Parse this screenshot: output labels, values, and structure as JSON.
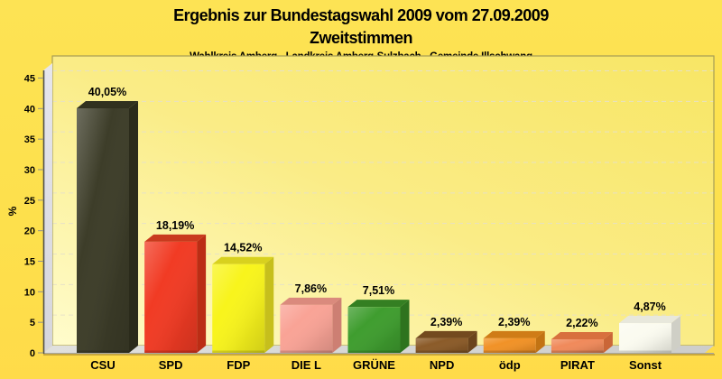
{
  "header": {
    "title": "Ergebnis zur Bundestagswahl 2009 vom 27.09.2009",
    "subtitle": "Zweitstimmen",
    "region_line": "Wahlkreis Amberg - Landkreis Amberg-Sulzbach - Gemeinde Illschwang"
  },
  "chart_data": {
    "type": "bar",
    "style": "3d",
    "title": "Ergebnis zur Bundestagswahl 2009 vom 27.09.2009",
    "subtitle": "Zweitstimmen",
    "annotation": "Wahlkreis Amberg - Landkreis Amberg-Sulzbach - Gemeinde Illschwang",
    "xlabel": "",
    "ylabel": "%",
    "ylim": [
      0,
      45
    ],
    "ytick_step": 5,
    "yticks": [
      0,
      5,
      10,
      15,
      20,
      25,
      30,
      35,
      40,
      45
    ],
    "grid": "dashed-horizontal",
    "legend": "none",
    "categories": [
      "CSU",
      "SPD",
      "FDP",
      "DIE L",
      "GRÜNE",
      "NPD",
      "ödp",
      "PIRAT",
      "Sonst"
    ],
    "values": [
      40.05,
      18.19,
      14.52,
      7.86,
      7.51,
      2.39,
      2.39,
      2.22,
      4.87
    ],
    "value_labels": [
      "40,05%",
      "18,19%",
      "14,52%",
      "7,86%",
      "7,51%",
      "2,39%",
      "2,39%",
      "2,22%",
      "4,87%"
    ],
    "bars": [
      {
        "id": "csu",
        "front": "#3D3D29",
        "top": "#31311F",
        "side": "#2B2B1B"
      },
      {
        "id": "spd",
        "front": "#F13B24",
        "top": "#C93A1E",
        "side": "#BB2D15"
      },
      {
        "id": "fdp",
        "front": "#F8F41C",
        "top": "#D8D11E",
        "side": "#C6BF1C"
      },
      {
        "id": "die-l",
        "front": "#F9A396",
        "top": "#DA8A7D",
        "side": "#CD7F73"
      },
      {
        "id": "gruene",
        "front": "#3F9D2F",
        "top": "#347F22",
        "side": "#2E731E"
      },
      {
        "id": "npd",
        "front": "#8B5B29",
        "top": "#734A1F",
        "side": "#6B441D"
      },
      {
        "id": "oedp",
        "front": "#F19227",
        "top": "#CF7C17",
        "side": "#C27313"
      },
      {
        "id": "pirat",
        "front": "#F08A5B",
        "top": "#D8703E",
        "side": "#CA6637"
      },
      {
        "id": "sonst",
        "front": "#FBFBF0",
        "top": "#E8E8DC",
        "side": "#CFCFC6"
      }
    ]
  },
  "colors": {
    "background": "#FDE14D",
    "plot_border": "#A69D55",
    "gridline": "#E6E0C8",
    "wall_light": "#E6E6EC",
    "wall_dark": "#D6D6DC",
    "floor_light": "#E0E0DE",
    "floor_dark": "#CDCDCB",
    "floor_edge": "#A6A6A2",
    "axis_line": "#50504A",
    "axis_shadow": "#C7A73E",
    "tick": "#90908A",
    "text": "#000000"
  }
}
